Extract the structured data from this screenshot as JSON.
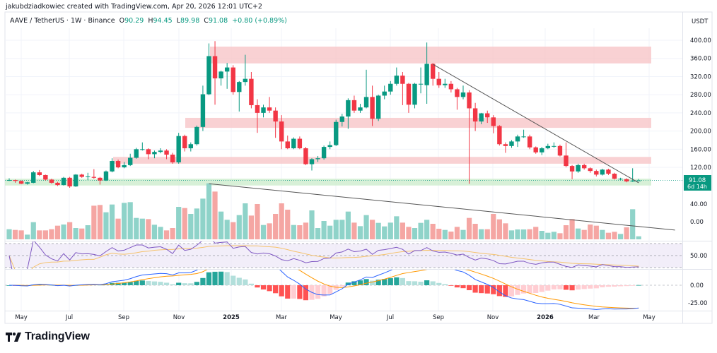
{
  "credit": "jakubdziadkowiec created with TradingView.com, Apr 20, 2026 12:01 UTC+2",
  "legend": {
    "symbol": "AAVE / TetherUS · 1W · Binance",
    "o_label": "O",
    "o": "90.29",
    "h_label": "H",
    "h": "94.45",
    "l_label": "L",
    "l": "89.98",
    "c_label": "C",
    "c": "91.08",
    "change": "+0.80 (+0.89%)"
  },
  "price_axis": {
    "currency": "USDT",
    "ticks": [
      "400.00",
      "360.00",
      "320.00",
      "280.00",
      "240.00",
      "200.00",
      "160.00",
      "120.00"
    ],
    "last_price": "91.08",
    "countdown": "6d 14h"
  },
  "oscillator_axis": {
    "ticks": [
      "40.00",
      "0.00"
    ]
  },
  "rsi_axis": {
    "ticks": [
      "50.00"
    ]
  },
  "macd_axis": {
    "ticks": [
      "0.00",
      "-25.00"
    ]
  },
  "time_axis": [
    "May",
    "Jul",
    "Sep",
    "Nov",
    "2025",
    "Mar",
    "May",
    "Jul",
    "Sep",
    "Nov",
    "2026",
    "Mar",
    "May"
  ],
  "brand": "TradingView",
  "colors": {
    "up": "#089981",
    "down": "#f23645",
    "up_vol": "#8fd3c9",
    "down_vol": "#f5a6a3",
    "zone_red": "#f7c5c8",
    "zone_green": "#cdeccd",
    "rsi": "#7e57c2",
    "rsi_ma": "#f5c26b",
    "macd": "#2962ff",
    "signal": "#ff9800"
  },
  "chart_data": {
    "type": "candlestick",
    "interval": "1W",
    "ylim": [
      60,
      410
    ],
    "candles_ohlc": [
      [
        92,
        96,
        90,
        92
      ],
      [
        92,
        93,
        86,
        90
      ],
      [
        90,
        91,
        83,
        84
      ],
      [
        84,
        88,
        82,
        87
      ],
      [
        86,
        112,
        85,
        109
      ],
      [
        109,
        114,
        101,
        103
      ],
      [
        103,
        104,
        91,
        93
      ],
      [
        93,
        95,
        84,
        86
      ],
      [
        86,
        88,
        79,
        81
      ],
      [
        81,
        99,
        80,
        97
      ],
      [
        97,
        99,
        75,
        78
      ],
      [
        78,
        105,
        77,
        104
      ],
      [
        104,
        106,
        97,
        99
      ],
      [
        100,
        108,
        92,
        100
      ],
      [
        99,
        116,
        95,
        97
      ],
      [
        97,
        99,
        82,
        91
      ],
      [
        91,
        113,
        90,
        111
      ],
      [
        111,
        140,
        109,
        134
      ],
      [
        134,
        137,
        118,
        120
      ],
      [
        120,
        132,
        118,
        125
      ],
      [
        125,
        150,
        123,
        141
      ],
      [
        141,
        163,
        139,
        160
      ],
      [
        160,
        175,
        157,
        160
      ],
      [
        160,
        162,
        138,
        149
      ],
      [
        149,
        157,
        140,
        154
      ],
      [
        154,
        162,
        151,
        157
      ],
      [
        157,
        160,
        138,
        148
      ],
      [
        148,
        152,
        128,
        131
      ],
      [
        131,
        196,
        128,
        189
      ],
      [
        189,
        192,
        155,
        162
      ],
      [
        162,
        175,
        155,
        171
      ],
      [
        171,
        212,
        168,
        209
      ],
      [
        209,
        300,
        200,
        281
      ],
      [
        281,
        393,
        279,
        365
      ],
      [
        365,
        398,
        258,
        316
      ],
      [
        316,
        333,
        300,
        331
      ],
      [
        331,
        350,
        293,
        340
      ],
      [
        340,
        345,
        280,
        286
      ],
      [
        286,
        310,
        243,
        308
      ],
      [
        308,
        368,
        300,
        315
      ],
      [
        315,
        330,
        250,
        257
      ],
      [
        257,
        270,
        196,
        240
      ],
      [
        240,
        258,
        230,
        252
      ],
      [
        252,
        275,
        240,
        245
      ],
      [
        245,
        252,
        185,
        221
      ],
      [
        221,
        235,
        160,
        177
      ],
      [
        177,
        190,
        160,
        162
      ],
      [
        162,
        186,
        160,
        183
      ],
      [
        183,
        188,
        160,
        162
      ],
      [
        162,
        165,
        125,
        127
      ],
      [
        127,
        140,
        113,
        138
      ],
      [
        138,
        145,
        132,
        140
      ],
      [
        140,
        168,
        137,
        165
      ],
      [
        165,
        177,
        160,
        169
      ],
      [
        169,
        225,
        167,
        220
      ],
      [
        220,
        238,
        210,
        232
      ],
      [
        232,
        272,
        205,
        268
      ],
      [
        268,
        278,
        240,
        245
      ],
      [
        245,
        260,
        240,
        252
      ],
      [
        252,
        335,
        250,
        275
      ],
      [
        275,
        300,
        211,
        227
      ],
      [
        227,
        280,
        222,
        278
      ],
      [
        278,
        300,
        270,
        287
      ],
      [
        287,
        310,
        280,
        304
      ],
      [
        304,
        340,
        300,
        322
      ],
      [
        322,
        330,
        257,
        304
      ],
      [
        304,
        306,
        240,
        258
      ],
      [
        258,
        306,
        250,
        304
      ],
      [
        304,
        340,
        283,
        304
      ],
      [
        301,
        395,
        260,
        348
      ],
      [
        348,
        350,
        300,
        315
      ],
      [
        315,
        330,
        295,
        301
      ],
      [
        301,
        315,
        295,
        304
      ],
      [
        304,
        310,
        285,
        292
      ],
      [
        292,
        295,
        247,
        275
      ],
      [
        275,
        300,
        270,
        285
      ],
      [
        285,
        290,
        84,
        250
      ],
      [
        250,
        262,
        200,
        221
      ],
      [
        221,
        240,
        215,
        239
      ],
      [
        239,
        245,
        218,
        230
      ],
      [
        230,
        235,
        195,
        211
      ],
      [
        211,
        213,
        168,
        171
      ],
      [
        171,
        175,
        152,
        167
      ],
      [
        167,
        180,
        163,
        177
      ],
      [
        177,
        192,
        165,
        188
      ],
      [
        188,
        203,
        185,
        188
      ],
      [
        188,
        192,
        160,
        164
      ],
      [
        164,
        166,
        150,
        153
      ],
      [
        153,
        165,
        147,
        162
      ],
      [
        162,
        172,
        160,
        167
      ],
      [
        167,
        175,
        163,
        167
      ],
      [
        167,
        170,
        144,
        146
      ],
      [
        146,
        175,
        120,
        123
      ],
      [
        123,
        125,
        94,
        111
      ],
      [
        111,
        128,
        108,
        125
      ],
      [
        125,
        128,
        115,
        118
      ],
      [
        118,
        120,
        108,
        112
      ],
      [
        112,
        115,
        100,
        104
      ],
      [
        104,
        117,
        102,
        115
      ],
      [
        115,
        117,
        103,
        106
      ],
      [
        106,
        108,
        93,
        95
      ],
      [
        95,
        97,
        92,
        95
      ],
      [
        94,
        96,
        87,
        89
      ],
      [
        89,
        118,
        88,
        90.29
      ],
      [
        90.29,
        94.45,
        89.98,
        91.08
      ]
    ],
    "volume_relative": [
      43,
      40,
      38,
      20,
      73,
      38,
      38,
      43,
      58,
      63,
      73,
      48,
      46,
      60,
      143,
      146,
      115,
      148,
      88,
      155,
      158,
      91,
      88,
      86,
      62,
      53,
      38,
      48,
      138,
      133,
      108,
      131,
      173,
      238,
      203,
      118,
      83,
      73,
      103,
      153,
      101,
      150,
      61,
      68,
      108,
      153,
      126,
      61,
      60,
      71,
      123,
      48,
      78,
      58,
      83,
      83,
      118,
      71,
      56,
      103,
      83,
      70,
      55,
      71,
      98,
      71,
      53,
      48,
      70,
      83,
      66,
      45,
      40,
      33,
      53,
      40,
      91,
      66,
      43,
      43,
      108,
      85,
      68,
      38,
      42,
      42,
      43,
      53,
      36,
      28,
      32,
      26,
      60,
      86,
      46,
      40,
      63,
      58,
      40,
      28,
      32,
      23,
      51,
      128,
      13
    ],
    "zones": [
      {
        "color": "red",
        "from_price": 349,
        "to_price": 386
      },
      {
        "color": "red",
        "from_price": 207,
        "to_price": 229
      },
      {
        "color": "red",
        "from_price": 128,
        "to_price": 143
      },
      {
        "color": "green",
        "from_price": 80,
        "to_price": 95
      }
    ],
    "trendlines": [
      {
        "pane": "price",
        "from_candle": 70,
        "from_value": 347,
        "to_candle": 104,
        "to_value": 86
      },
      {
        "pane": "oscillator",
        "from_candle": 33,
        "from_value": 86,
        "to_candle": 110,
        "to_value": -19
      }
    ],
    "rsi_levels": [
      70,
      50,
      30
    ]
  }
}
